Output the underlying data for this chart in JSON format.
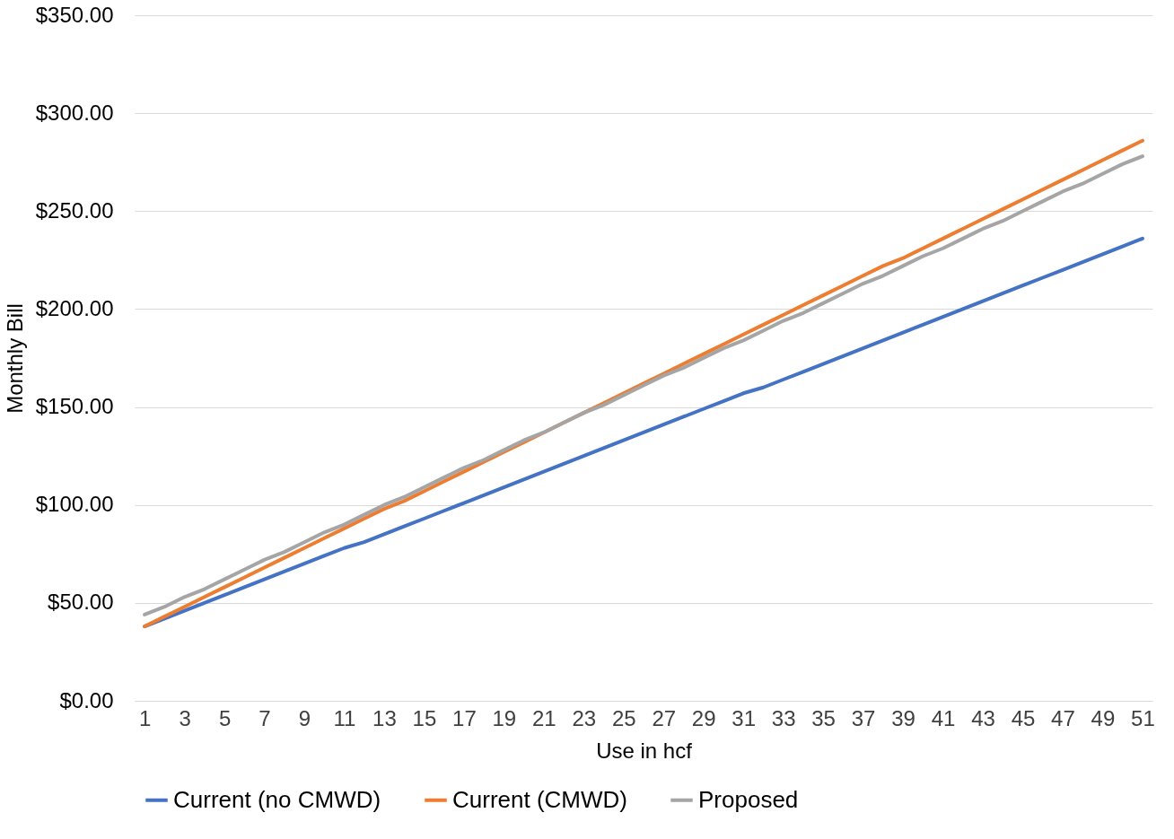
{
  "chart_data": {
    "type": "line",
    "xlabel": "Use in hcf",
    "ylabel": "Monthly  Bill",
    "x": [
      1,
      2,
      3,
      4,
      5,
      6,
      7,
      8,
      9,
      10,
      11,
      12,
      13,
      14,
      15,
      16,
      17,
      18,
      19,
      20,
      21,
      22,
      23,
      24,
      25,
      26,
      27,
      28,
      29,
      30,
      31,
      32,
      33,
      34,
      35,
      36,
      37,
      38,
      39,
      40,
      41,
      42,
      43,
      44,
      45,
      46,
      47,
      48,
      49,
      50,
      51
    ],
    "xlim": [
      0.5,
      51.5
    ],
    "xticks": [
      1,
      3,
      5,
      7,
      9,
      11,
      13,
      15,
      17,
      19,
      21,
      23,
      25,
      27,
      29,
      31,
      33,
      35,
      37,
      39,
      41,
      43,
      45,
      47,
      49,
      51
    ],
    "series": [
      {
        "name": "Current (no CMWD)",
        "color": "#4472c4",
        "values": [
          38,
          42,
          46,
          50,
          54,
          58,
          62,
          66,
          70,
          74,
          78,
          81,
          85,
          89,
          93,
          97,
          101,
          105,
          109,
          113,
          117,
          121,
          125,
          129,
          133,
          137,
          141,
          145,
          149,
          153,
          157,
          160,
          164,
          168,
          172,
          176,
          180,
          184,
          188,
          192,
          196,
          200,
          204,
          208,
          212,
          216,
          220,
          224,
          228,
          232,
          236
        ]
      },
      {
        "name": "Current (CMWD)",
        "color": "#ed7d31",
        "values": [
          38,
          43,
          48,
          53,
          58,
          63,
          68,
          73,
          78,
          83,
          88,
          93,
          98,
          102,
          107,
          112,
          117,
          122,
          127,
          132,
          137,
          142,
          147,
          152,
          157,
          162,
          167,
          172,
          177,
          182,
          187,
          192,
          197,
          202,
          207,
          212,
          217,
          222,
          226,
          231,
          236,
          241,
          246,
          251,
          256,
          261,
          266,
          271,
          276,
          281,
          286
        ]
      },
      {
        "name": "Proposed",
        "color": "#a5a5a5",
        "values": [
          44,
          48,
          53,
          57,
          62,
          67,
          72,
          76,
          81,
          86,
          90,
          95,
          100,
          104,
          109,
          114,
          119,
          123,
          128,
          133,
          137,
          142,
          147,
          151,
          156,
          161,
          166,
          170,
          175,
          180,
          184,
          189,
          194,
          198,
          203,
          208,
          213,
          217,
          222,
          227,
          231,
          236,
          241,
          245,
          250,
          255,
          260,
          264,
          269,
          274,
          278
        ]
      }
    ],
    "ylim": [
      0,
      350
    ],
    "yticks": [
      {
        "value": 0,
        "label": "$0.00"
      },
      {
        "value": 50,
        "label": "$50.00"
      },
      {
        "value": 100,
        "label": "$100.00"
      },
      {
        "value": 150,
        "label": "$150.00"
      },
      {
        "value": 200,
        "label": "$200.00"
      },
      {
        "value": 250,
        "label": "$250.00"
      },
      {
        "value": 300,
        "label": "$300.00"
      },
      {
        "value": 350,
        "label": "$350.00"
      }
    ],
    "grid": "y",
    "legend": "bottom",
    "line_style": "solid",
    "marker": "none"
  }
}
